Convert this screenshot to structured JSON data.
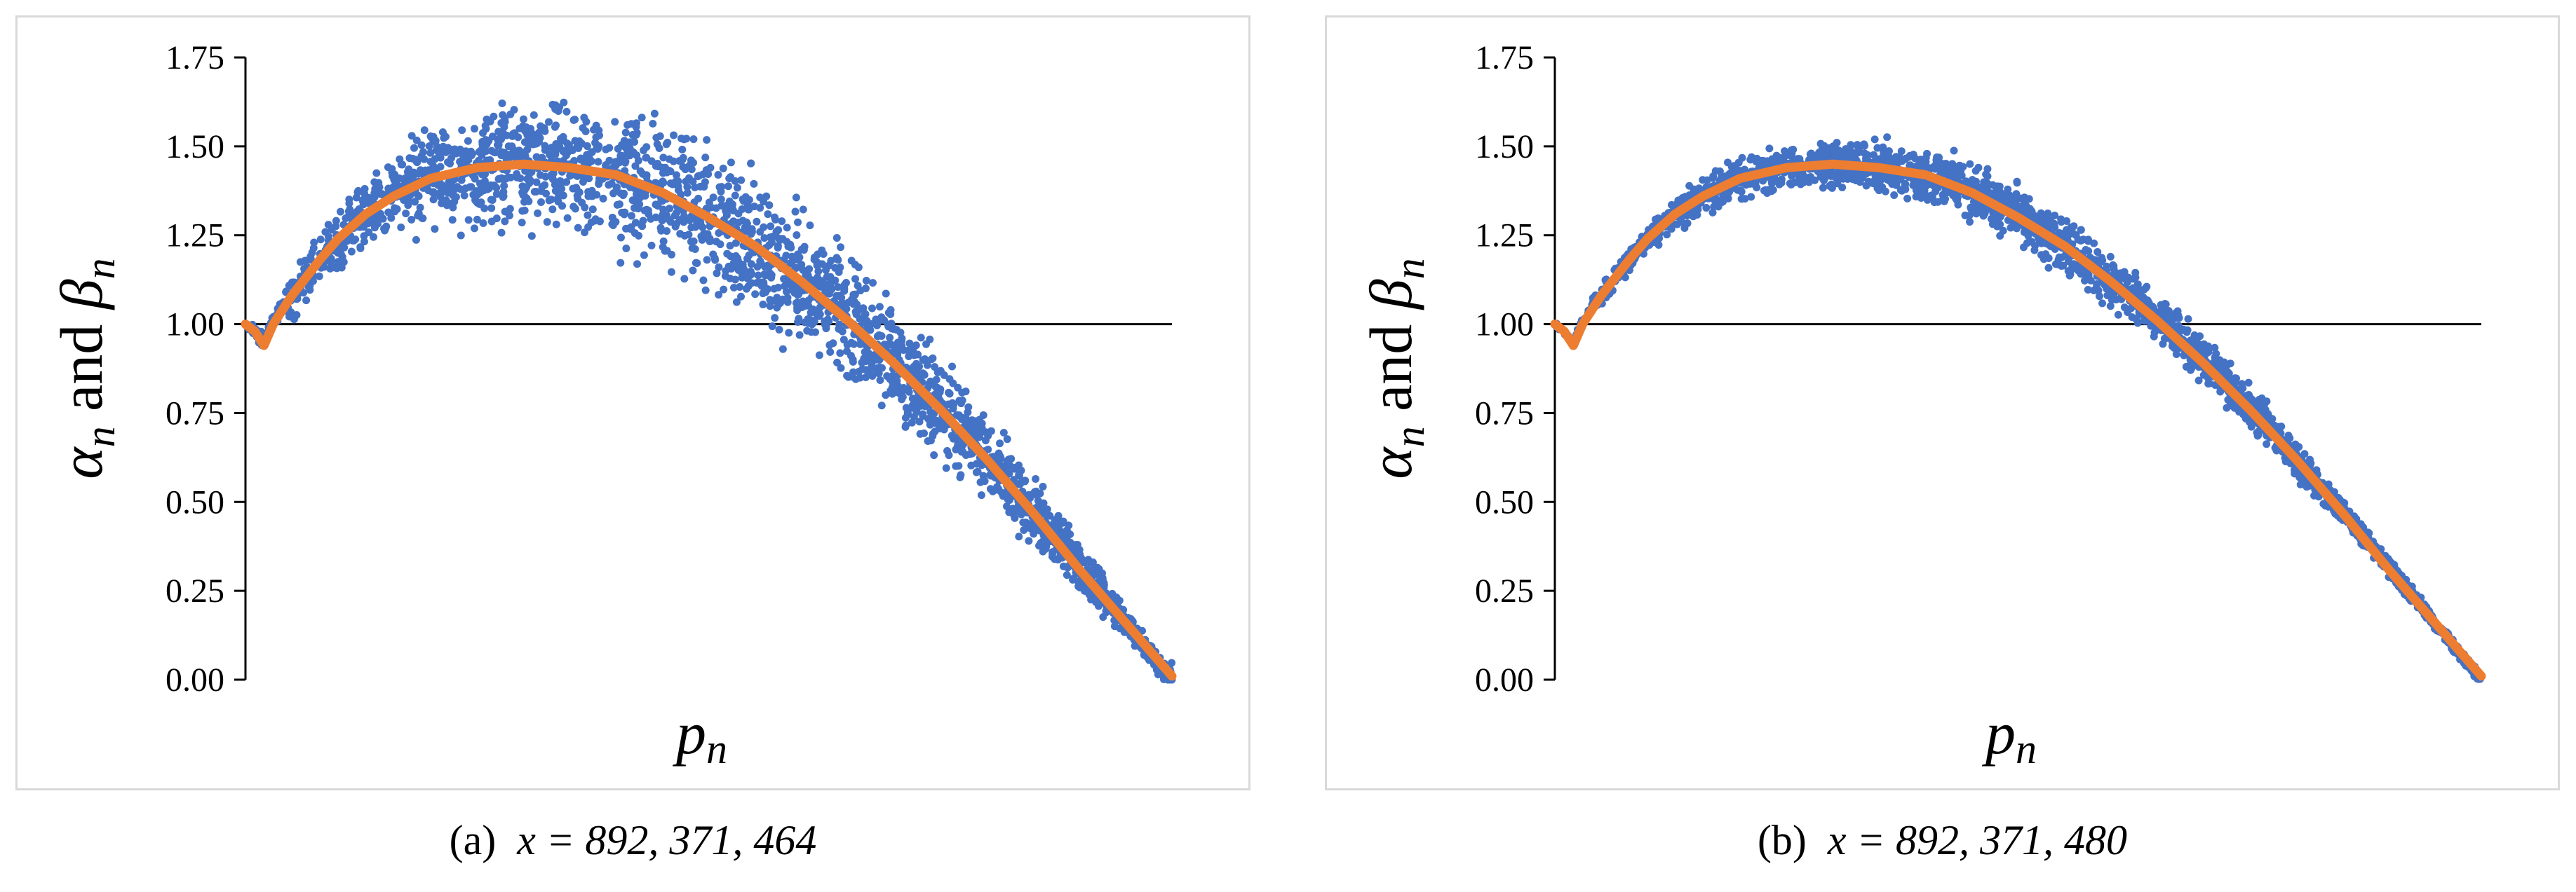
{
  "chart_data": [
    {
      "type": "scatter",
      "panel": "a",
      "caption_label": "(a)",
      "caption_eq": "x = 892, 371, 464",
      "xlabel": "p",
      "xlabel_sub": "n",
      "ylabel_parts": [
        "α",
        "n",
        " and ",
        "β",
        "n"
      ],
      "ylim": [
        0,
        1.75
      ],
      "yticks": [
        "0.00",
        "0.25",
        "0.50",
        "0.75",
        "1.00",
        "1.25",
        "1.50",
        "1.75"
      ],
      "x_ticks_shown": false,
      "reference_line_y": 1.0,
      "scatter_noise": 0.045,
      "series": [
        {
          "color": "#4472c4",
          "points": [
            [
              0.0,
              1.0
            ],
            [
              0.01,
              0.98
            ],
            [
              0.02,
              0.95
            ],
            [
              0.03,
              1.01
            ],
            [
              0.05,
              1.08
            ],
            [
              0.08,
              1.18
            ],
            [
              0.1,
              1.24
            ],
            [
              0.13,
              1.31
            ],
            [
              0.16,
              1.36
            ],
            [
              0.2,
              1.41
            ],
            [
              0.25,
              1.44
            ],
            [
              0.3,
              1.45
            ],
            [
              0.35,
              1.44
            ],
            [
              0.4,
              1.42
            ],
            [
              0.45,
              1.37
            ],
            [
              0.5,
              1.31
            ],
            [
              0.55,
              1.22
            ],
            [
              0.6,
              1.12
            ],
            [
              0.65,
              1.02
            ],
            [
              0.7,
              0.9
            ],
            [
              0.75,
              0.77
            ],
            [
              0.8,
              0.62
            ],
            [
              0.85,
              0.47
            ],
            [
              0.9,
              0.32
            ],
            [
              0.95,
              0.16
            ],
            [
              1.0,
              0.0
            ]
          ]
        },
        {
          "color": "#ed7d31",
          "points": [
            [
              0.0,
              1.0
            ],
            [
              0.01,
              0.98
            ],
            [
              0.02,
              0.94
            ],
            [
              0.03,
              1.0
            ],
            [
              0.05,
              1.08
            ],
            [
              0.08,
              1.18
            ],
            [
              0.1,
              1.24
            ],
            [
              0.13,
              1.31
            ],
            [
              0.16,
              1.36
            ],
            [
              0.2,
              1.41
            ],
            [
              0.25,
              1.44
            ],
            [
              0.3,
              1.45
            ],
            [
              0.35,
              1.44
            ],
            [
              0.4,
              1.42
            ],
            [
              0.45,
              1.37
            ],
            [
              0.5,
              1.3
            ],
            [
              0.55,
              1.22
            ],
            [
              0.6,
              1.12
            ],
            [
              0.65,
              1.01
            ],
            [
              0.7,
              0.89
            ],
            [
              0.75,
              0.76
            ],
            [
              0.8,
              0.62
            ],
            [
              0.85,
              0.47
            ],
            [
              0.9,
              0.31
            ],
            [
              0.95,
              0.16
            ],
            [
              1.0,
              0.01
            ]
          ]
        }
      ]
    },
    {
      "type": "scatter",
      "panel": "b",
      "caption_label": "(b)",
      "caption_eq": "x = 892, 371, 480",
      "xlabel": "p",
      "xlabel_sub": "n",
      "ylabel_parts": [
        "α",
        "n",
        " and ",
        "β",
        "n"
      ],
      "ylim": [
        0,
        1.75
      ],
      "yticks": [
        "0.00",
        "0.25",
        "0.50",
        "0.75",
        "1.00",
        "1.25",
        "1.50",
        "1.75"
      ],
      "x_ticks_shown": false,
      "reference_line_y": 1.0,
      "scatter_noise": 0.018,
      "series": [
        {
          "color": "#4472c4",
          "points": [
            [
              0.0,
              1.0
            ],
            [
              0.01,
              0.98
            ],
            [
              0.02,
              0.95
            ],
            [
              0.03,
              1.01
            ],
            [
              0.05,
              1.08
            ],
            [
              0.08,
              1.18
            ],
            [
              0.1,
              1.24
            ],
            [
              0.13,
              1.31
            ],
            [
              0.16,
              1.36
            ],
            [
              0.2,
              1.41
            ],
            [
              0.25,
              1.44
            ],
            [
              0.3,
              1.45
            ],
            [
              0.35,
              1.44
            ],
            [
              0.4,
              1.42
            ],
            [
              0.45,
              1.37
            ],
            [
              0.5,
              1.31
            ],
            [
              0.55,
              1.22
            ],
            [
              0.6,
              1.12
            ],
            [
              0.65,
              1.02
            ],
            [
              0.7,
              0.9
            ],
            [
              0.75,
              0.77
            ],
            [
              0.8,
              0.62
            ],
            [
              0.85,
              0.47
            ],
            [
              0.9,
              0.32
            ],
            [
              0.95,
              0.16
            ],
            [
              1.0,
              0.0
            ]
          ]
        },
        {
          "color": "#ed7d31",
          "points": [
            [
              0.0,
              1.0
            ],
            [
              0.01,
              0.98
            ],
            [
              0.02,
              0.94
            ],
            [
              0.03,
              1.0
            ],
            [
              0.05,
              1.08
            ],
            [
              0.08,
              1.18
            ],
            [
              0.1,
              1.24
            ],
            [
              0.13,
              1.31
            ],
            [
              0.16,
              1.36
            ],
            [
              0.2,
              1.41
            ],
            [
              0.25,
              1.44
            ],
            [
              0.3,
              1.45
            ],
            [
              0.35,
              1.44
            ],
            [
              0.4,
              1.42
            ],
            [
              0.45,
              1.37
            ],
            [
              0.5,
              1.3
            ],
            [
              0.55,
              1.22
            ],
            [
              0.6,
              1.12
            ],
            [
              0.65,
              1.01
            ],
            [
              0.7,
              0.89
            ],
            [
              0.75,
              0.76
            ],
            [
              0.8,
              0.62
            ],
            [
              0.85,
              0.47
            ],
            [
              0.9,
              0.31
            ],
            [
              0.95,
              0.16
            ],
            [
              1.0,
              0.01
            ]
          ]
        }
      ]
    }
  ]
}
